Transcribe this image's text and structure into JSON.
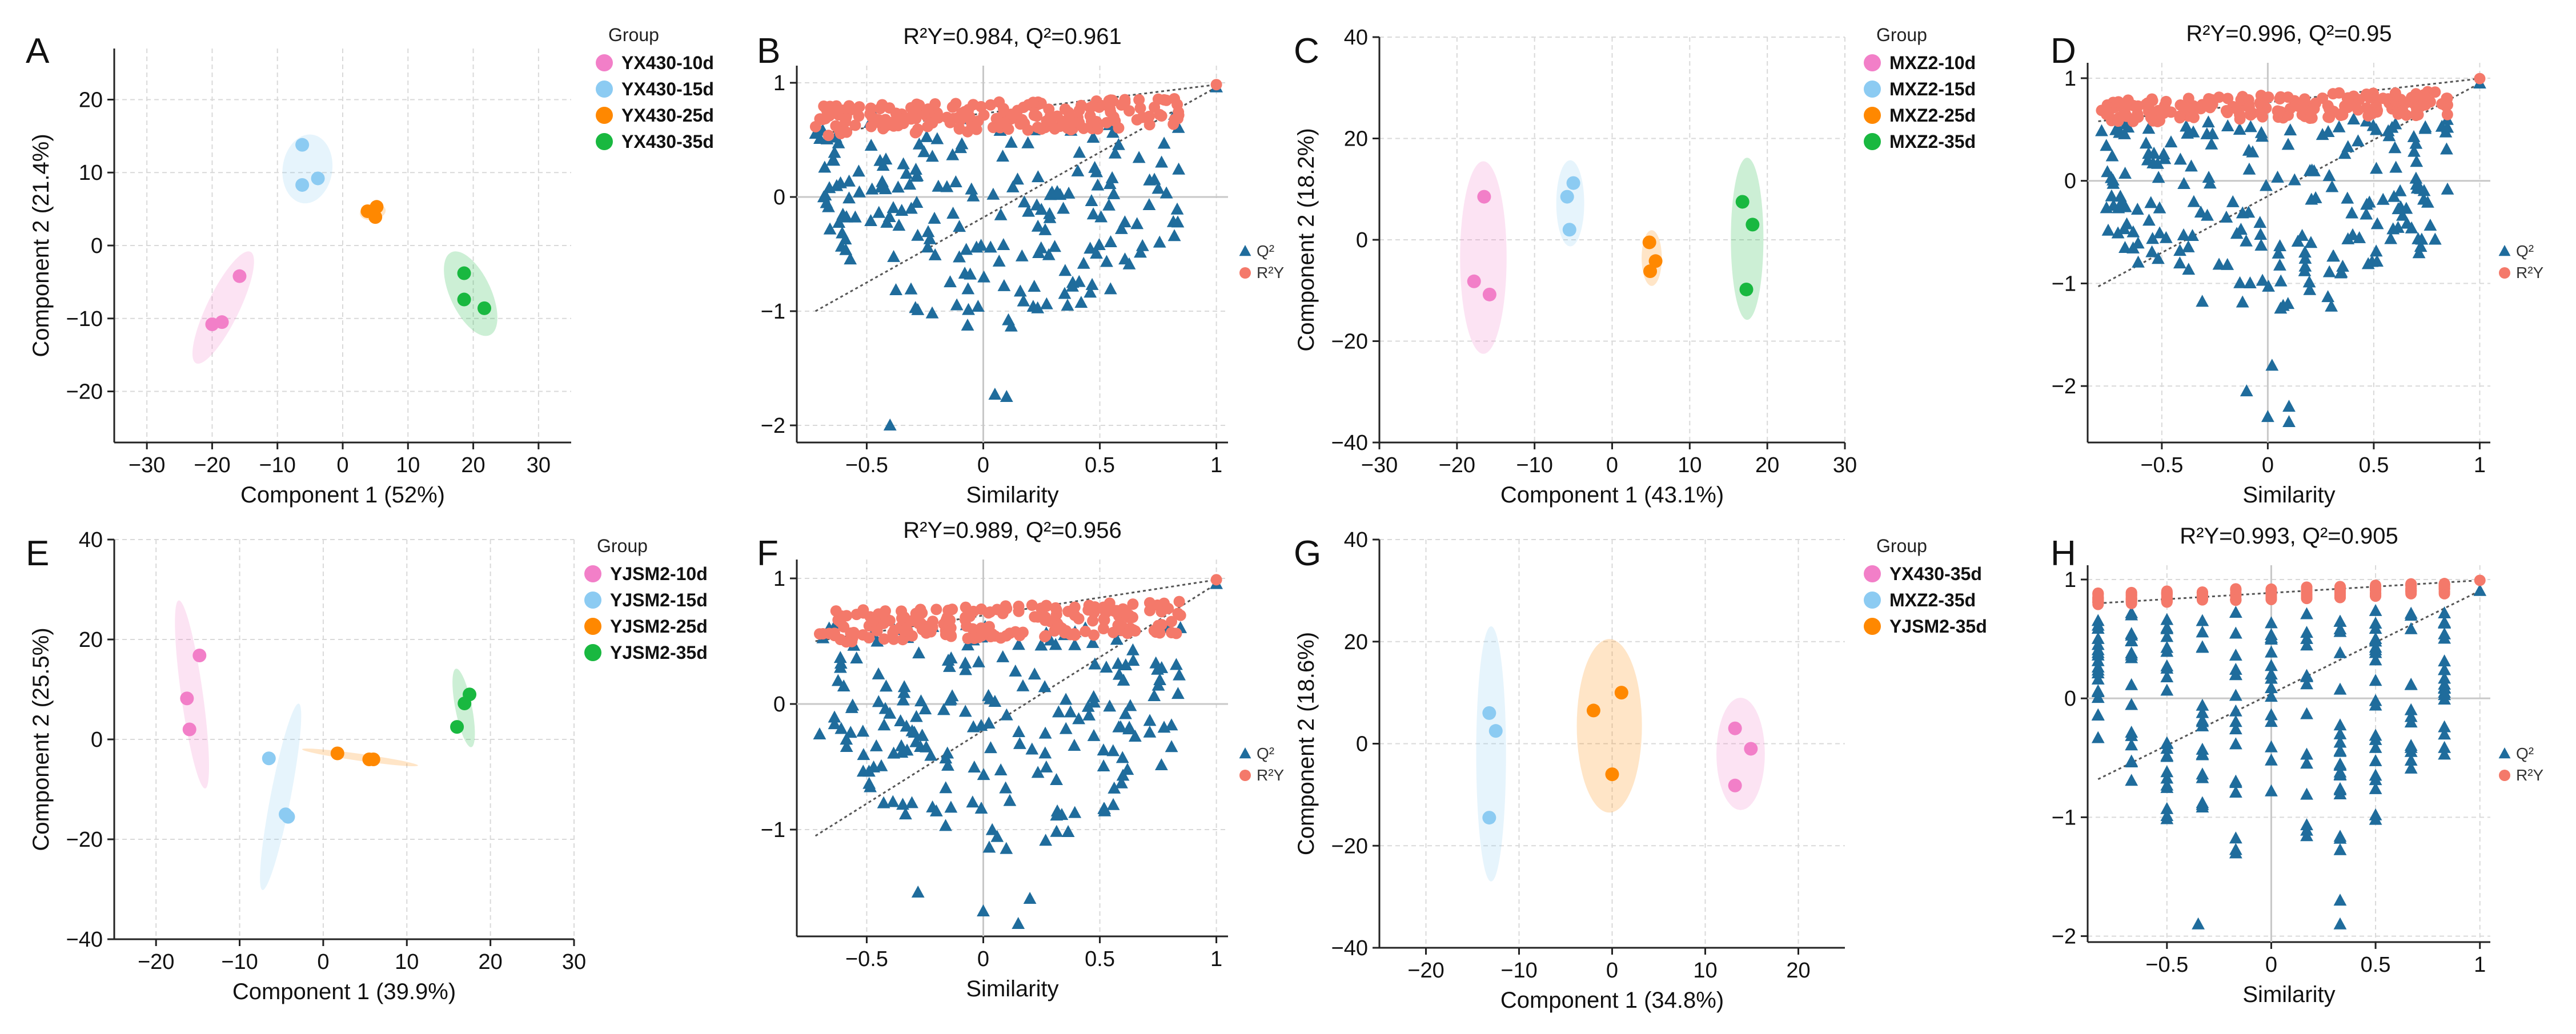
{
  "chart_data": [
    {
      "id": "A",
      "type": "scatter",
      "panel_label": "A",
      "xlabel": "Component 1 (52%)",
      "ylabel": "Component 2 (21.4%)",
      "xlim": [
        -35,
        35
      ],
      "ylim": [
        -27,
        27
      ],
      "xticks": [
        -30,
        -20,
        -10,
        0,
        10,
        20,
        30
      ],
      "yticks": [
        -20,
        -10,
        0,
        10,
        20
      ],
      "legend_title": "Group",
      "series": [
        {
          "name": "YX430-10d",
          "color": "#f27fc8",
          "points": [
            [
              -20,
              -10.8
            ],
            [
              -18.5,
              -10.5
            ],
            [
              -15.8,
              -4.2
            ]
          ],
          "ellipse": {
            "cx": -18.3,
            "cy": -8.5,
            "rx": 9.5,
            "ry": 2.2,
            "angle": 64
          }
        },
        {
          "name": "YX430-15d",
          "color": "#8ccbf2",
          "points": [
            [
              -6.2,
              13.8
            ],
            [
              -6.2,
              8.3
            ],
            [
              -3.8,
              9.2
            ]
          ],
          "ellipse": {
            "cx": -5.4,
            "cy": 10.5,
            "rx": 5.3,
            "ry": 3.4,
            "angle": 82
          }
        },
        {
          "name": "YX430-25d",
          "color": "#ff8800",
          "points": [
            [
              3.8,
              4.7
            ],
            [
              5.2,
              5.3
            ],
            [
              5.0,
              3.9
            ]
          ],
          "ellipse": {
            "cx": 4.6,
            "cy": 4.6,
            "rx": 2.0,
            "ry": 1.1,
            "angle": 10
          }
        },
        {
          "name": "YX430-35d",
          "color": "#19b840",
          "points": [
            [
              18.6,
              -3.8
            ],
            [
              18.6,
              -7.4
            ],
            [
              21.7,
              -8.6
            ]
          ],
          "ellipse": {
            "cx": 19.6,
            "cy": -6.6,
            "rx": 7.0,
            "ry": 2.8,
            "angle": -65
          }
        }
      ]
    },
    {
      "id": "B",
      "type": "permutation",
      "panel_label": "B",
      "title_text": "R²Y=0.984, Q²=0.961",
      "xlabel": "Similarity",
      "ylabel": "",
      "xlim": [
        -0.8,
        1.05
      ],
      "ylim": [
        -2.15,
        1.15
      ],
      "xticks": [
        -0.5,
        0,
        0.5,
        1
      ],
      "yticks": [
        -2,
        -1,
        0,
        1
      ],
      "legend_q2": "Q²",
      "legend_r2y": "R²Y",
      "r2y_line": [
        [
          -0.72,
          0.55
        ],
        [
          1,
          0.984
        ]
      ],
      "q2_line": [
        [
          -0.72,
          -1.0
        ],
        [
          1,
          0.961
        ]
      ],
      "r2y_center": 0.7,
      "r2y_spread": 0.13,
      "q2_top": 0.75,
      "q2_bottom": -1.2,
      "q2_extra_low": [
        [
          -0.4,
          -2.0
        ],
        [
          0.1,
          -1.75
        ],
        [
          0.05,
          -1.73
        ]
      ],
      "n_perm": 200,
      "seed": 11
    },
    {
      "id": "C",
      "type": "scatter",
      "panel_label": "C",
      "xlabel": "Component 1 (43.1%)",
      "ylabel": "Component 2 (18.2%)",
      "xlim": [
        -30,
        30
      ],
      "ylim": [
        -40,
        40
      ],
      "xticks": [
        -30,
        -20,
        -10,
        0,
        10,
        20,
        30
      ],
      "yticks": [
        -40,
        -20,
        0,
        20,
        40
      ],
      "legend_title": "Group",
      "series": [
        {
          "name": "MXZ2-10d",
          "color": "#f27fc8",
          "points": [
            [
              -16.5,
              8.5
            ],
            [
              -17.8,
              -8.2
            ],
            [
              -15.8,
              -10.8
            ]
          ],
          "ellipse": {
            "cx": -16.6,
            "cy": -3.5,
            "rx": 3.0,
            "ry": 19.0,
            "angle": 0
          }
        },
        {
          "name": "MXZ2-15d",
          "color": "#8ccbf2",
          "points": [
            [
              -5.8,
              8.5
            ],
            [
              -5.0,
              11.2
            ],
            [
              -5.5,
              2.0
            ]
          ],
          "ellipse": {
            "cx": -5.4,
            "cy": 7.2,
            "rx": 1.8,
            "ry": 8.5,
            "angle": 0
          }
        },
        {
          "name": "MXZ2-25d",
          "color": "#ff8800",
          "points": [
            [
              4.8,
              -0.5
            ],
            [
              5.6,
              -4.2
            ],
            [
              4.9,
              -6.2
            ]
          ],
          "ellipse": {
            "cx": 5.1,
            "cy": -3.6,
            "rx": 1.3,
            "ry": 5.5,
            "angle": 0
          }
        },
        {
          "name": "MXZ2-35d",
          "color": "#19b840",
          "points": [
            [
              16.8,
              7.5
            ],
            [
              18.1,
              3.0
            ],
            [
              17.3,
              -9.8
            ]
          ],
          "ellipse": {
            "cx": 17.4,
            "cy": 0.2,
            "rx": 2.1,
            "ry": 16.0,
            "angle": 0
          }
        }
      ]
    },
    {
      "id": "D",
      "type": "permutation",
      "panel_label": "D",
      "title_text": "R²Y=0.996, Q²=0.95",
      "xlabel": "Similarity",
      "ylabel": "",
      "xlim": [
        -0.85,
        1.05
      ],
      "ylim": [
        -2.55,
        1.15
      ],
      "xticks": [
        -0.5,
        0,
        0.5,
        1
      ],
      "yticks": [
        -2,
        -1,
        0,
        1
      ],
      "legend_q2": "Q²",
      "legend_r2y": "R²Y",
      "r2y_line": [
        [
          -0.8,
          0.58
        ],
        [
          1,
          0.996
        ]
      ],
      "q2_line": [
        [
          -0.8,
          -1.03
        ],
        [
          1,
          0.95
        ]
      ],
      "r2y_center": 0.72,
      "r2y_spread": 0.12,
      "q2_top": 0.6,
      "q2_bottom": -1.4,
      "q2_extra_low": [
        [
          0.0,
          -2.3
        ],
        [
          0.1,
          -2.35
        ],
        [
          -0.1,
          -2.05
        ],
        [
          0.1,
          -2.2
        ],
        [
          0.02,
          -1.8
        ]
      ],
      "n_perm": 200,
      "seed": 23
    },
    {
      "id": "E",
      "type": "scatter",
      "panel_label": "E",
      "xlabel": "Component 1 (39.9%)",
      "ylabel": "Component 2 (25.5%)",
      "xlim": [
        -25,
        30
      ],
      "ylim": [
        -40,
        40
      ],
      "xticks": [
        -20,
        -10,
        0,
        10,
        20,
        30
      ],
      "yticks": [
        -40,
        -20,
        0,
        20,
        40
      ],
      "legend_title": "Group",
      "series": [
        {
          "name": "YJSM2-10d",
          "color": "#f27fc8",
          "points": [
            [
              -14.8,
              16.8
            ],
            [
              -16.3,
              8.2
            ],
            [
              -16.0,
              2.0
            ]
          ],
          "ellipse": {
            "cx": -15.7,
            "cy": 9.0,
            "rx": 1.3,
            "ry": 19.0,
            "angle": 8
          }
        },
        {
          "name": "YJSM2-15d",
          "color": "#8ccbf2",
          "points": [
            [
              -6.5,
              -3.8
            ],
            [
              -4.5,
              -15.0
            ],
            [
              -4.2,
              -15.5
            ]
          ],
          "ellipse": {
            "cx": -5.1,
            "cy": -11.5,
            "rx": 1.2,
            "ry": 19.0,
            "angle": -11
          }
        },
        {
          "name": "YJSM2-25d",
          "color": "#ff8800",
          "points": [
            [
              1.7,
              -2.8
            ],
            [
              5.5,
              -4.0
            ],
            [
              6.0,
              -4.0
            ]
          ],
          "ellipse": {
            "cx": 4.4,
            "cy": -3.6,
            "rx": 7.0,
            "ry": 0.7,
            "angle": -8
          }
        },
        {
          "name": "YJSM2-35d",
          "color": "#19b840",
          "points": [
            [
              17.5,
              9.0
            ],
            [
              16.9,
              7.2
            ],
            [
              16.0,
              2.5
            ]
          ],
          "ellipse": {
            "cx": 16.8,
            "cy": 6.3,
            "rx": 1.0,
            "ry": 8.0,
            "angle": 11
          }
        }
      ]
    },
    {
      "id": "F",
      "type": "permutation",
      "panel_label": "F",
      "title_text": "R²Y=0.989, Q²=0.956",
      "xlabel": "Similarity",
      "ylabel": "",
      "xlim": [
        -0.8,
        1.05
      ],
      "ylim": [
        -1.85,
        1.15
      ],
      "xticks": [
        -0.5,
        0,
        0.5,
        1
      ],
      "yticks": [
        -1,
        0,
        1
      ],
      "legend_q2": "Q²",
      "legend_r2y": "R²Y",
      "r2y_line": [
        [
          -0.72,
          0.5
        ],
        [
          1,
          0.989
        ]
      ],
      "q2_line": [
        [
          -0.72,
          -1.05
        ],
        [
          1,
          0.956
        ]
      ],
      "r2y_center": 0.65,
      "r2y_spread": 0.13,
      "q2_top": 0.65,
      "q2_bottom": -1.2,
      "q2_extra_low": [
        [
          0.0,
          -1.65
        ],
        [
          0.15,
          -1.75
        ],
        [
          -0.28,
          -1.5
        ],
        [
          0.2,
          -1.55
        ]
      ],
      "n_perm": 200,
      "seed": 37
    },
    {
      "id": "G",
      "type": "scatter",
      "panel_label": "G",
      "xlabel": "Component 1 (34.8%)",
      "ylabel": "Component 2 (18.6%)",
      "xlim": [
        -25,
        25
      ],
      "ylim": [
        -40,
        40
      ],
      "xticks": [
        -20,
        -10,
        0,
        10,
        20
      ],
      "yticks": [
        -40,
        -20,
        0,
        20,
        40
      ],
      "legend_title": "Group",
      "series": [
        {
          "name": "YX430-35d",
          "color": "#f27fc8",
          "points": [
            [
              13.2,
              3.0
            ],
            [
              14.9,
              -1.0
            ],
            [
              13.2,
              -8.2
            ]
          ],
          "ellipse": {
            "cx": 13.8,
            "cy": -2.0,
            "rx": 2.6,
            "ry": 11.0,
            "angle": 0
          }
        },
        {
          "name": "MXZ2-35d",
          "color": "#8ccbf2",
          "points": [
            [
              -13.2,
              6.0
            ],
            [
              -12.5,
              2.5
            ],
            [
              -13.2,
              -14.5
            ]
          ],
          "ellipse": {
            "cx": -13.0,
            "cy": -2.0,
            "rx": 1.6,
            "ry": 25.0,
            "angle": 0
          }
        },
        {
          "name": "YJSM2-35d",
          "color": "#ff8800",
          "points": [
            [
              -2.0,
              6.5
            ],
            [
              1.0,
              10.0
            ],
            [
              0.0,
              -6.0
            ]
          ],
          "ellipse": {
            "cx": -0.3,
            "cy": 3.5,
            "rx": 3.5,
            "ry": 17.0,
            "angle": 0
          }
        }
      ]
    },
    {
      "id": "H",
      "type": "permutation",
      "panel_label": "H",
      "title_text": "R²Y=0.993, Q²=0.905",
      "xlabel": "Similarity",
      "ylabel": "",
      "xlim": [
        -0.88,
        1.05
      ],
      "ylim": [
        -2.05,
        1.12
      ],
      "xticks": [
        -0.5,
        0,
        0.5,
        1
      ],
      "yticks": [
        -2,
        -1,
        0,
        1
      ],
      "legend_q2": "Q²",
      "legend_r2y": "R²Y",
      "r2y_line": [
        [
          -0.83,
          0.8
        ],
        [
          1,
          0.993
        ]
      ],
      "q2_line": [
        [
          -0.83,
          -0.68
        ],
        [
          1,
          0.905
        ]
      ],
      "r2y_center": 0.88,
      "r2y_spread": 0.05,
      "q2_top": 0.75,
      "q2_bottom": -1.5,
      "q2_extra_low": [
        [
          -0.35,
          -1.9
        ],
        [
          0.33,
          -1.9
        ],
        [
          0.33,
          -1.7
        ]
      ],
      "discrete_x": [
        -0.83,
        -0.67,
        -0.5,
        -0.33,
        -0.17,
        0,
        0.17,
        0.33,
        0.5,
        0.67,
        0.83
      ],
      "n_perm": 200,
      "seed": 53
    }
  ]
}
